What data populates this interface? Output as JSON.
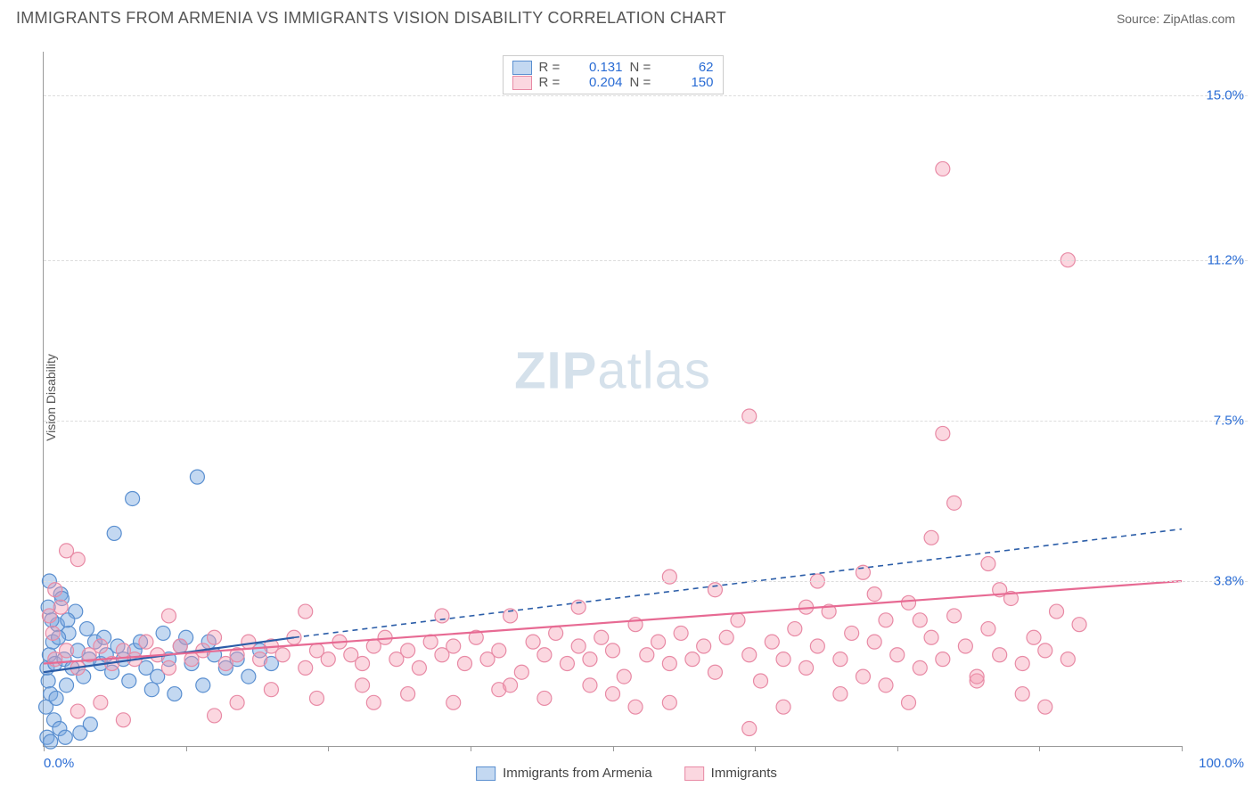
{
  "title": "IMMIGRANTS FROM ARMENIA VS IMMIGRANTS VISION DISABILITY CORRELATION CHART",
  "source": "Source: ZipAtlas.com",
  "watermark": "ZIPatlas",
  "chart": {
    "type": "scatter",
    "ylabel": "Vision Disability",
    "xlim": [
      0,
      100
    ],
    "ylim": [
      0,
      16
    ],
    "x_ticks": [
      0,
      12.5,
      25,
      37.5,
      50,
      62.5,
      75,
      87.5,
      100
    ],
    "x_tick_labels": {
      "0": "0.0%",
      "100": "100.0%"
    },
    "y_gridlines": [
      3.8,
      7.5,
      11.2,
      15.0
    ],
    "y_tick_labels": [
      "3.8%",
      "7.5%",
      "11.2%",
      "15.0%"
    ],
    "background_color": "#ffffff",
    "grid_color": "#dddddd",
    "axis_color": "#999999",
    "marker_radius": 8,
    "series": [
      {
        "name": "Immigrants from Armenia",
        "color_fill": "rgba(121,168,225,0.45)",
        "color_stroke": "#5a8fd0",
        "trend_color": "#2b5da8",
        "trend_dash": "none",
        "R": "0.131",
        "N": "62",
        "trend_line": {
          "x1": 0,
          "y1": 1.7,
          "x2": 22,
          "y2": 2.5
        },
        "trend_line_ext": {
          "x1": 22,
          "y1": 2.5,
          "x2": 100,
          "y2": 5.0,
          "dash": "6,5"
        },
        "points": [
          [
            0.3,
            1.8
          ],
          [
            0.5,
            2.1
          ],
          [
            0.4,
            1.5
          ],
          [
            0.8,
            2.4
          ],
          [
            1.0,
            1.9
          ],
          [
            0.6,
            1.2
          ],
          [
            1.2,
            2.8
          ],
          [
            0.2,
            0.9
          ],
          [
            1.5,
            3.5
          ],
          [
            0.9,
            0.6
          ],
          [
            1.8,
            2.0
          ],
          [
            2.0,
            1.4
          ],
          [
            2.2,
            2.6
          ],
          [
            0.4,
            3.2
          ],
          [
            0.7,
            2.9
          ],
          [
            1.1,
            1.1
          ],
          [
            1.4,
            0.4
          ],
          [
            0.3,
            0.2
          ],
          [
            2.5,
            1.8
          ],
          [
            3.0,
            2.2
          ],
          [
            3.5,
            1.6
          ],
          [
            4.0,
            2.0
          ],
          [
            4.5,
            2.4
          ],
          [
            5.0,
            1.9
          ],
          [
            5.5,
            2.1
          ],
          [
            6.0,
            1.7
          ],
          [
            6.5,
            2.3
          ],
          [
            7.0,
            2.0
          ],
          [
            7.5,
            1.5
          ],
          [
            8.0,
            2.2
          ],
          [
            9.0,
            1.8
          ],
          [
            10.0,
            1.6
          ],
          [
            11.0,
            2.0
          ],
          [
            12.0,
            2.3
          ],
          [
            13.0,
            1.9
          ],
          [
            14.0,
            1.4
          ],
          [
            15.0,
            2.1
          ],
          [
            16.0,
            1.8
          ],
          [
            17.0,
            2.0
          ],
          [
            18.0,
            1.6
          ],
          [
            19.0,
            2.2
          ],
          [
            20.0,
            1.9
          ],
          [
            3.2,
            0.3
          ],
          [
            4.1,
            0.5
          ],
          [
            2.8,
            3.1
          ],
          [
            1.6,
            3.4
          ],
          [
            0.5,
            3.8
          ],
          [
            6.2,
            4.9
          ],
          [
            7.8,
            5.7
          ],
          [
            13.5,
            6.2
          ],
          [
            1.3,
            2.5
          ],
          [
            2.1,
            2.9
          ],
          [
            0.6,
            0.1
          ],
          [
            1.9,
            0.2
          ],
          [
            3.8,
            2.7
          ],
          [
            5.3,
            2.5
          ],
          [
            8.5,
            2.4
          ],
          [
            9.5,
            1.3
          ],
          [
            10.5,
            2.6
          ],
          [
            11.5,
            1.2
          ],
          [
            12.5,
            2.5
          ],
          [
            14.5,
            2.4
          ]
        ]
      },
      {
        "name": "Immigrants",
        "color_fill": "rgba(244,154,177,0.40)",
        "color_stroke": "#e88aa5",
        "trend_color": "#e76a93",
        "trend_dash": "none",
        "R": "0.204",
        "N": "150",
        "trend_line": {
          "x1": 0,
          "y1": 1.9,
          "x2": 100,
          "y2": 3.8
        },
        "points": [
          [
            1,
            2.0
          ],
          [
            2,
            2.2
          ],
          [
            3,
            1.8
          ],
          [
            3,
            4.3
          ],
          [
            4,
            2.1
          ],
          [
            5,
            2.3
          ],
          [
            6,
            1.9
          ],
          [
            7,
            2.2
          ],
          [
            8,
            2.0
          ],
          [
            9,
            2.4
          ],
          [
            10,
            2.1
          ],
          [
            11,
            1.8
          ],
          [
            12,
            2.3
          ],
          [
            13,
            2.0
          ],
          [
            14,
            2.2
          ],
          [
            15,
            2.5
          ],
          [
            16,
            1.9
          ],
          [
            17,
            2.1
          ],
          [
            18,
            2.4
          ],
          [
            19,
            2.0
          ],
          [
            20,
            2.3
          ],
          [
            21,
            2.1
          ],
          [
            22,
            2.5
          ],
          [
            23,
            1.8
          ],
          [
            24,
            2.2
          ],
          [
            25,
            2.0
          ],
          [
            26,
            2.4
          ],
          [
            27,
            2.1
          ],
          [
            28,
            1.9
          ],
          [
            29,
            2.3
          ],
          [
            30,
            2.5
          ],
          [
            31,
            2.0
          ],
          [
            32,
            2.2
          ],
          [
            33,
            1.8
          ],
          [
            34,
            2.4
          ],
          [
            35,
            2.1
          ],
          [
            36,
            2.3
          ],
          [
            37,
            1.9
          ],
          [
            38,
            2.5
          ],
          [
            39,
            2.0
          ],
          [
            40,
            2.2
          ],
          [
            41,
            3.0
          ],
          [
            42,
            1.7
          ],
          [
            43,
            2.4
          ],
          [
            44,
            2.1
          ],
          [
            45,
            2.6
          ],
          [
            46,
            1.9
          ],
          [
            47,
            2.3
          ],
          [
            48,
            2.0
          ],
          [
            49,
            2.5
          ],
          [
            50,
            2.2
          ],
          [
            51,
            1.6
          ],
          [
            52,
            2.8
          ],
          [
            53,
            2.1
          ],
          [
            54,
            2.4
          ],
          [
            55,
            1.9
          ],
          [
            56,
            2.6
          ],
          [
            57,
            2.0
          ],
          [
            58,
            2.3
          ],
          [
            59,
            1.7
          ],
          [
            60,
            2.5
          ],
          [
            61,
            2.9
          ],
          [
            62,
            2.1
          ],
          [
            63,
            1.5
          ],
          [
            64,
            2.4
          ],
          [
            65,
            2.0
          ],
          [
            66,
            2.7
          ],
          [
            67,
            1.8
          ],
          [
            68,
            2.3
          ],
          [
            69,
            3.1
          ],
          [
            70,
            2.0
          ],
          [
            71,
            2.6
          ],
          [
            72,
            1.6
          ],
          [
            73,
            2.4
          ],
          [
            74,
            2.9
          ],
          [
            75,
            2.1
          ],
          [
            76,
            3.3
          ],
          [
            77,
            1.8
          ],
          [
            78,
            2.5
          ],
          [
            79,
            2.0
          ],
          [
            80,
            3.0
          ],
          [
            81,
            2.3
          ],
          [
            82,
            1.5
          ],
          [
            83,
            2.7
          ],
          [
            84,
            2.1
          ],
          [
            85,
            3.4
          ],
          [
            86,
            1.9
          ],
          [
            87,
            2.5
          ],
          [
            88,
            2.2
          ],
          [
            89,
            3.1
          ],
          [
            90,
            2.0
          ],
          [
            91,
            2.8
          ],
          [
            55,
            3.9
          ],
          [
            62,
            7.6
          ],
          [
            78,
            4.8
          ],
          [
            79,
            7.2
          ],
          [
            80,
            5.6
          ],
          [
            79,
            13.3
          ],
          [
            90,
            11.2
          ],
          [
            84,
            3.6
          ],
          [
            72,
            4.0
          ],
          [
            68,
            3.8
          ],
          [
            50,
            1.2
          ],
          [
            52,
            0.9
          ],
          [
            48,
            1.4
          ],
          [
            44,
            1.1
          ],
          [
            40,
            1.3
          ],
          [
            36,
            1.0
          ],
          [
            32,
            1.2
          ],
          [
            28,
            1.4
          ],
          [
            24,
            1.1
          ],
          [
            20,
            1.3
          ],
          [
            2,
            4.5
          ],
          [
            1,
            3.6
          ],
          [
            0.5,
            3.0
          ],
          [
            0.8,
            2.6
          ],
          [
            1.5,
            3.2
          ],
          [
            62,
            0.4
          ],
          [
            65,
            0.9
          ],
          [
            88,
            0.9
          ],
          [
            70,
            1.2
          ],
          [
            74,
            1.4
          ],
          [
            76,
            1.0
          ],
          [
            82,
            1.6
          ],
          [
            86,
            1.2
          ],
          [
            73,
            3.5
          ],
          [
            67,
            3.2
          ],
          [
            59,
            3.6
          ],
          [
            55,
            1.0
          ],
          [
            47,
            3.2
          ],
          [
            41,
            1.4
          ],
          [
            35,
            3.0
          ],
          [
            29,
            1.0
          ],
          [
            23,
            3.1
          ],
          [
            17,
            1.0
          ],
          [
            11,
            3.0
          ],
          [
            5,
            1.0
          ],
          [
            3,
            0.8
          ],
          [
            7,
            0.6
          ],
          [
            15,
            0.7
          ],
          [
            83,
            4.2
          ],
          [
            77,
            2.9
          ]
        ]
      }
    ]
  },
  "legend_bottom": [
    {
      "label": "Immigrants from Armenia"
    },
    {
      "label": "Immigrants"
    }
  ]
}
